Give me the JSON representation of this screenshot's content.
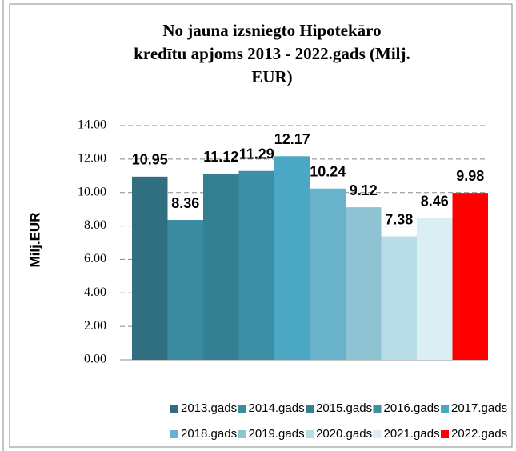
{
  "chart_data": {
    "type": "bar",
    "title": [
      "No jauna izsniegto Hipotekāro",
      "kredītu apjoms 2013 - 2022.gads (Milj.",
      "EUR)"
    ],
    "y_label": "Milj.EUR",
    "series": [
      {
        "name": "2013.gads",
        "color": "#2f6f7f",
        "values": [
          10.95
        ]
      },
      {
        "name": "2014.gads",
        "color": "#3a8aa0",
        "values": [
          8.36
        ]
      },
      {
        "name": "2015.gads",
        "color": "#347f91",
        "values": [
          11.12
        ]
      },
      {
        "name": "2016.gads",
        "color": "#3d8fa6",
        "values": [
          11.29
        ]
      },
      {
        "name": "2017.gads",
        "color": "#4aa8c4",
        "values": [
          12.17
        ]
      },
      {
        "name": "2018.gads",
        "color": "#68b3c9",
        "values": [
          10.24
        ]
      },
      {
        "name": "2019.gads",
        "color": "#8dc3d3",
        "values": [
          9.12
        ]
      },
      {
        "name": "2020.gads",
        "color": "#b8dde7",
        "values": [
          7.38
        ]
      },
      {
        "name": "2021.gads",
        "color": "#daeef3",
        "values": [
          8.46
        ]
      },
      {
        "name": "2022.gads",
        "color": "#ff0000",
        "values": [
          9.98
        ]
      }
    ],
    "ylim": [
      0,
      14
    ],
    "yticks": [
      {
        "value": 0,
        "label": "0.00"
      },
      {
        "value": 2,
        "label": "2.00"
      },
      {
        "value": 4,
        "label": "4.00"
      },
      {
        "value": 6,
        "label": "6.00"
      },
      {
        "value": 8,
        "label": "8.00"
      },
      {
        "value": 10,
        "label": "10.00"
      },
      {
        "value": 12,
        "label": "12.00"
      },
      {
        "value": 14,
        "label": "14.00"
      }
    ],
    "grid": true,
    "legend": "bottom"
  }
}
